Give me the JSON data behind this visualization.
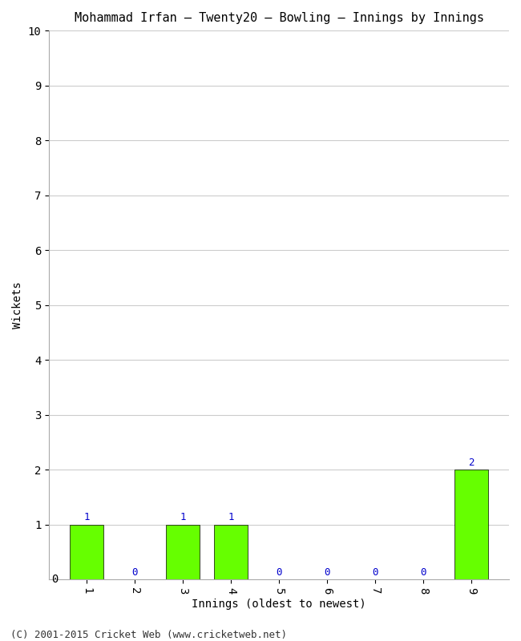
{
  "title": "Mohammad Irfan – Twenty20 – Bowling – Innings by Innings",
  "xlabel": "Innings (oldest to newest)",
  "ylabel": "Wickets",
  "categories": [
    "1",
    "2",
    "3",
    "4",
    "5",
    "6",
    "7",
    "8",
    "9"
  ],
  "values": [
    1,
    0,
    1,
    1,
    0,
    0,
    0,
    0,
    2
  ],
  "bar_color": "#66ff00",
  "bar_edge_color": "#000000",
  "ylim": [
    0,
    10
  ],
  "yticks": [
    0,
    1,
    2,
    3,
    4,
    5,
    6,
    7,
    8,
    9,
    10
  ],
  "label_color": "#0000cc",
  "background_color": "#ffffff",
  "plot_bg_color": "#ffffff",
  "title_fontsize": 11,
  "axis_label_fontsize": 10,
  "tick_fontsize": 10,
  "annotation_fontsize": 9,
  "footer": "(C) 2001-2015 Cricket Web (www.cricketweb.net)",
  "footer_fontsize": 9,
  "grid_color": "#cccccc",
  "bar_width": 0.7
}
